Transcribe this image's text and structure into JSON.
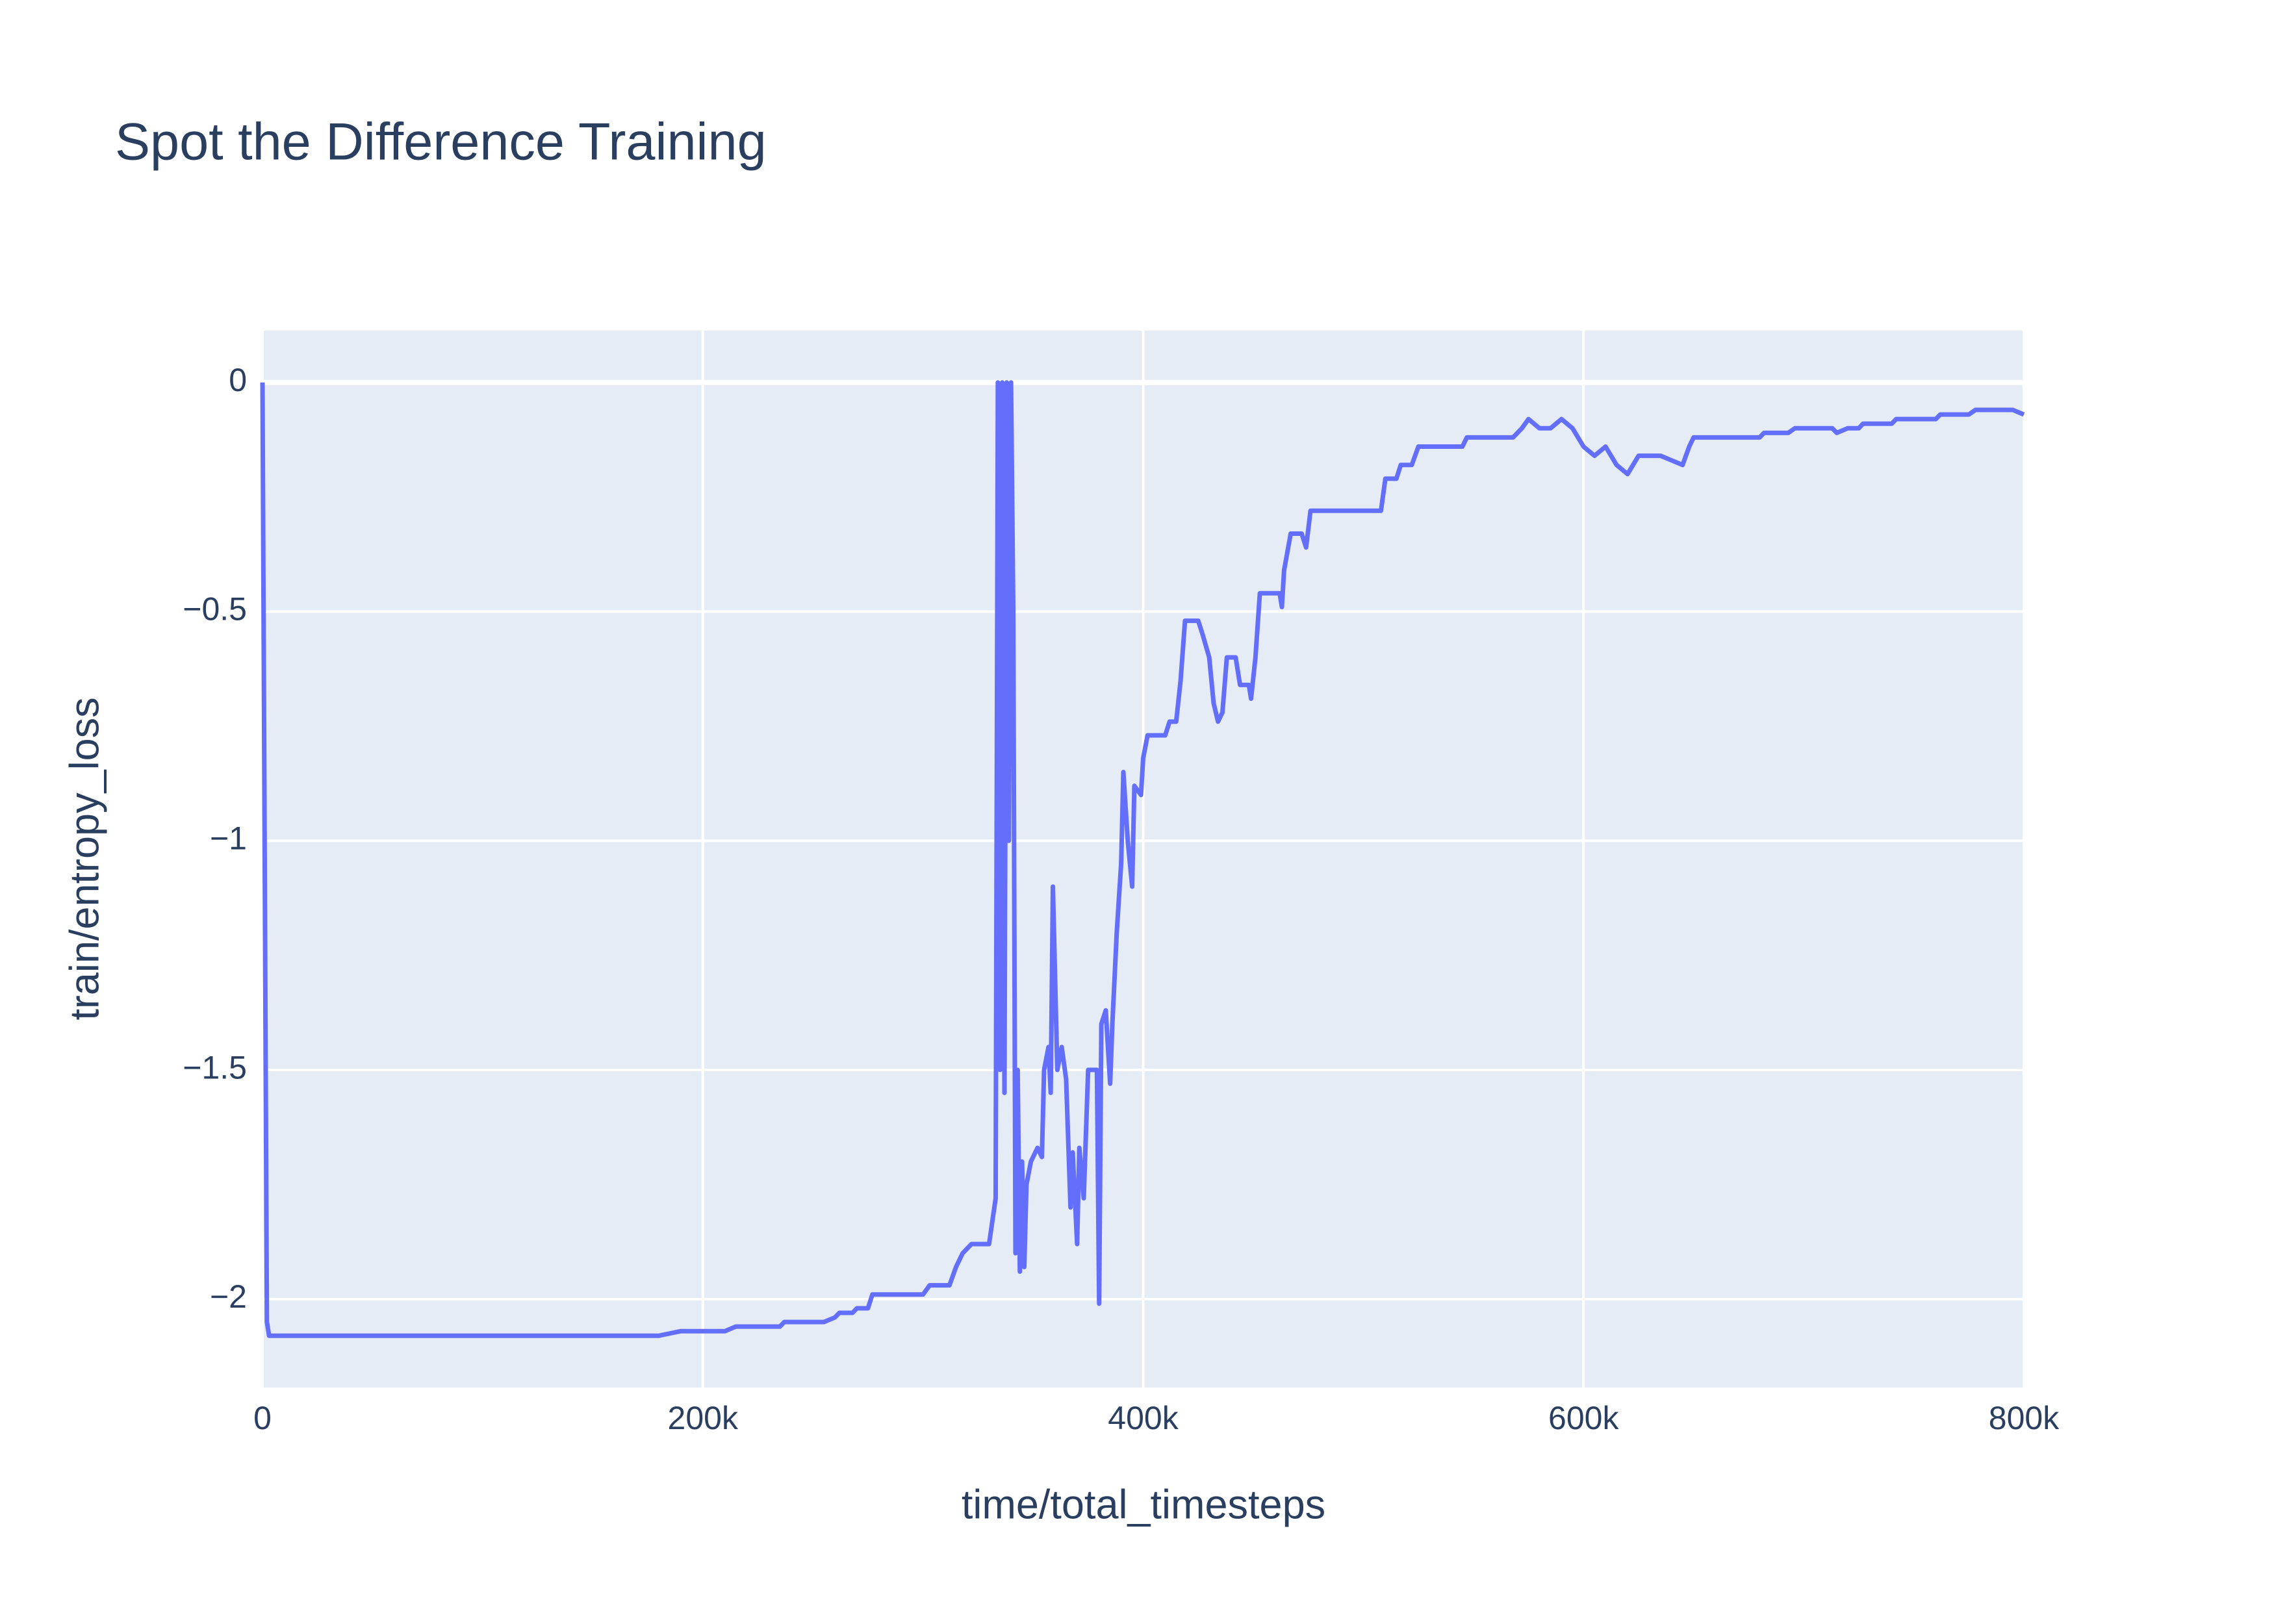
{
  "chart_data": {
    "type": "line",
    "title": "Spot the Difference Training",
    "xlabel": "time/total_timesteps",
    "ylabel": "train/entropy_loss",
    "xlim": [
      0,
      800000
    ],
    "ylim": [
      -2.193,
      0.113
    ],
    "xticks": [
      0,
      {
        "value": 200000,
        "label": "200k"
      },
      {
        "value": 400000,
        "label": "400k"
      },
      {
        "value": 600000,
        "label": "600k"
      },
      {
        "value": 800000,
        "label": "800k"
      }
    ],
    "yticks": [
      0,
      {
        "value": -0.5,
        "label": "−0.5"
      },
      {
        "value": -1,
        "label": "−1"
      },
      {
        "value": -1.5,
        "label": "−1.5"
      },
      {
        "value": -2,
        "label": "−2"
      }
    ],
    "grid": true,
    "series": [
      {
        "name": "train/entropy_loss",
        "color": "#636efa",
        "x": [
          0,
          2000,
          3000,
          50000,
          180000,
          190000,
          210000,
          215000,
          235000,
          237000,
          255000,
          260000,
          262000,
          268000,
          270000,
          275000,
          277000,
          300000,
          303000,
          312000,
          315000,
          318000,
          322000,
          330000,
          333000,
          334000,
          335000,
          336000,
          337000,
          338000,
          339000,
          340000,
          341000,
          342000,
          343000,
          344000,
          345000,
          346000,
          347000,
          349000,
          352000,
          354000,
          355000,
          357000,
          358000,
          359000,
          361000,
          363000,
          365000,
          367000,
          368000,
          370000,
          371000,
          373000,
          375000,
          379000,
          380000,
          381000,
          383000,
          385000,
          386000,
          388000,
          390000,
          391000,
          393000,
          395000,
          396000,
          399000,
          400000,
          402000,
          410000,
          412000,
          415000,
          417000,
          419000,
          425000,
          427000,
          430000,
          432000,
          434000,
          436000,
          438000,
          442000,
          444000,
          448000,
          449000,
          451000,
          453000,
          462000,
          463000,
          464000,
          467000,
          472000,
          474000,
          476000,
          508000,
          510000,
          515000,
          517000,
          522000,
          525000,
          545000,
          547000,
          568000,
          572000,
          575000,
          580000,
          585000,
          590000,
          595000,
          600000,
          605000,
          610000,
          615000,
          620000,
          625000,
          635000,
          640000,
          645000,
          648000,
          650000,
          680000,
          682000,
          693000,
          696000,
          713000,
          715000,
          720000,
          725000,
          727000,
          740000,
          742000,
          760000,
          762000,
          775000,
          778000,
          795000,
          800000
        ],
        "values": [
          0,
          -2.05,
          -2.08,
          -2.08,
          -2.08,
          -2.07,
          -2.07,
          -2.06,
          -2.06,
          -2.05,
          -2.05,
          -2.04,
          -2.03,
          -2.03,
          -2.02,
          -2.02,
          -1.99,
          -1.99,
          -1.97,
          -1.97,
          -1.93,
          -1.9,
          -1.88,
          -1.88,
          -1.78,
          0,
          -1.5,
          0,
          -1.55,
          0,
          -1.0,
          0,
          -0.5,
          -1.9,
          -1.5,
          -1.94,
          -1.7,
          -1.93,
          -1.75,
          -1.7,
          -1.67,
          -1.69,
          -1.5,
          -1.45,
          -1.55,
          -1.1,
          -1.5,
          -1.45,
          -1.52,
          -1.8,
          -1.68,
          -1.88,
          -1.67,
          -1.78,
          -1.5,
          -1.5,
          -2.01,
          -1.4,
          -1.37,
          -1.53,
          -1.4,
          -1.2,
          -1.05,
          -0.85,
          -1.0,
          -1.1,
          -0.88,
          -0.9,
          -0.82,
          -0.77,
          -0.77,
          -0.74,
          -0.74,
          -0.65,
          -0.52,
          -0.52,
          -0.55,
          -0.6,
          -0.7,
          -0.74,
          -0.72,
          -0.6,
          -0.6,
          -0.66,
          -0.66,
          -0.69,
          -0.6,
          -0.46,
          -0.46,
          -0.49,
          -0.41,
          -0.33,
          -0.33,
          -0.36,
          -0.28,
          -0.28,
          -0.21,
          -0.21,
          -0.18,
          -0.18,
          -0.14,
          -0.14,
          -0.12,
          -0.12,
          -0.1,
          -0.08,
          -0.1,
          -0.1,
          -0.08,
          -0.1,
          -0.14,
          -0.16,
          -0.14,
          -0.18,
          -0.2,
          -0.16,
          -0.16,
          -0.17,
          -0.18,
          -0.14,
          -0.12,
          -0.12,
          -0.11,
          -0.11,
          -0.1,
          -0.1,
          -0.11,
          -0.1,
          -0.1,
          -0.09,
          -0.09,
          -0.08,
          -0.08,
          -0.07,
          -0.07,
          -0.06,
          -0.06,
          -0.07
        ]
      }
    ]
  }
}
